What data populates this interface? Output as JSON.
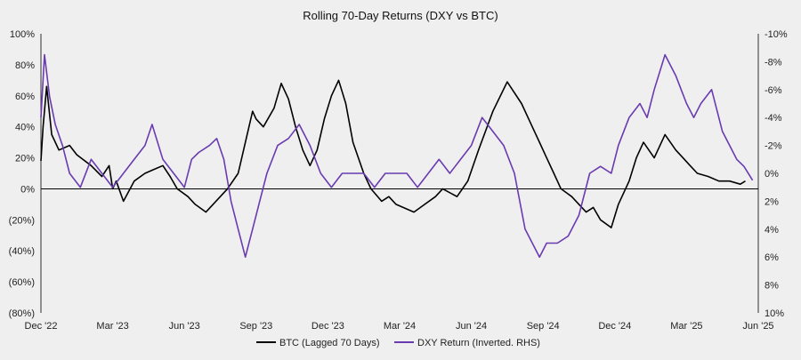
{
  "chart_data": {
    "type": "line",
    "title": "Rolling 70-Day Returns (DXY vs BTC)",
    "x_ticks": [
      "Dec '22",
      "Mar '23",
      "Jun '23",
      "Sep '23",
      "Dec '23",
      "Mar '24",
      "Jun '24",
      "Sep '24",
      "Dec '24",
      "Mar '25",
      "Jun '25"
    ],
    "y_left": {
      "range": [
        -80,
        100
      ],
      "ticks": [
        100,
        80,
        60,
        40,
        20,
        0,
        -20,
        -40,
        -60,
        -80
      ],
      "tick_labels": [
        "100%",
        "80%",
        "60%",
        "40%",
        "20%",
        "0%",
        "(20%)",
        "(40%)",
        "(60%)",
        "(80%)"
      ]
    },
    "y_right": {
      "range": [
        10,
        -10
      ],
      "inverted": true,
      "ticks": [
        -10,
        -8,
        -6,
        -4,
        -2,
        0,
        2,
        4,
        6,
        8,
        10
      ],
      "tick_labels": [
        "-10%",
        "-8%",
        "-6%",
        "-4%",
        "-2%",
        "0%",
        "2%",
        "4%",
        "6%",
        "8%",
        "10%"
      ]
    },
    "series": [
      {
        "name": "BTC (Lagged 70 Days)",
        "color": "#000000",
        "axis": "left",
        "unit": "percent",
        "x": [
          0.0,
          0.03,
          0.08,
          0.15,
          0.25,
          0.4,
          0.5,
          0.7,
          0.85,
          0.95,
          1.0,
          1.05,
          1.15,
          1.3,
          1.45,
          1.55,
          1.7,
          1.8,
          1.9,
          2.05,
          2.15,
          2.3,
          2.4,
          2.5,
          2.6,
          2.75,
          2.85,
          2.95,
          3.0,
          3.1,
          3.25,
          3.35,
          3.45,
          3.55,
          3.65,
          3.75,
          3.85,
          3.95,
          4.05,
          4.15,
          4.25,
          4.35,
          4.5,
          4.6,
          4.75,
          4.85,
          4.95,
          5.05,
          5.2,
          5.35,
          5.5,
          5.6,
          5.8,
          5.95,
          6.1,
          6.3,
          6.5,
          6.7,
          6.85,
          6.95,
          7.05,
          7.15,
          7.25,
          7.4,
          7.5,
          7.6,
          7.7,
          7.8,
          7.95,
          8.05,
          8.2,
          8.3,
          8.4,
          8.55,
          8.7,
          8.85,
          8.95,
          9.05,
          9.15,
          9.3,
          9.45,
          9.6,
          9.75,
          9.82
        ],
        "values": [
          18,
          40,
          66,
          35,
          25,
          28,
          22,
          15,
          8,
          15,
          0,
          5,
          -8,
          5,
          10,
          12,
          15,
          8,
          0,
          -5,
          -10,
          -15,
          -10,
          -5,
          0,
          10,
          30,
          50,
          45,
          40,
          52,
          68,
          58,
          40,
          25,
          15,
          25,
          45,
          60,
          70,
          55,
          30,
          10,
          0,
          -8,
          -5,
          -10,
          -12,
          -15,
          -10,
          -5,
          0,
          -5,
          5,
          25,
          50,
          69,
          55,
          40,
          30,
          20,
          10,
          0,
          -5,
          -10,
          -15,
          -12,
          -20,
          -25,
          -10,
          5,
          20,
          30,
          20,
          35,
          25,
          20,
          15,
          10,
          8,
          5,
          5,
          3,
          5
        ]
      },
      {
        "name": "DXY Return (Inverted. RHS)",
        "color": "#6a3bb0",
        "axis": "right",
        "unit": "percent",
        "x": [
          0.0,
          0.05,
          0.12,
          0.2,
          0.3,
          0.4,
          0.55,
          0.7,
          0.85,
          1.0,
          1.15,
          1.3,
          1.45,
          1.55,
          1.7,
          1.85,
          2.0,
          2.1,
          2.2,
          2.35,
          2.45,
          2.55,
          2.65,
          2.75,
          2.85,
          2.9,
          2.95,
          3.05,
          3.15,
          3.3,
          3.45,
          3.6,
          3.75,
          3.9,
          4.05,
          4.2,
          4.35,
          4.5,
          4.65,
          4.8,
          4.95,
          5.1,
          5.25,
          5.4,
          5.55,
          5.7,
          5.85,
          6.0,
          6.15,
          6.3,
          6.45,
          6.6,
          6.75,
          6.85,
          6.95,
          7.05,
          7.2,
          7.35,
          7.5,
          7.65,
          7.8,
          7.95,
          8.05,
          8.2,
          8.35,
          8.45,
          8.55,
          8.7,
          8.85,
          9.0,
          9.1,
          9.2,
          9.35,
          9.5,
          9.6,
          9.7,
          9.8,
          9.92
        ],
        "values": [
          -4,
          -8.5,
          -5.5,
          -3.5,
          -2,
          0,
          1,
          -1,
          0,
          1,
          0,
          -1,
          -2,
          -3.5,
          -1,
          0,
          1,
          -1,
          -1.5,
          -2,
          -2.5,
          -1,
          2,
          4,
          6,
          5,
          4,
          2,
          0,
          -2,
          -2.5,
          -3.5,
          -2,
          0,
          1,
          0,
          0,
          0,
          1,
          0,
          0,
          0,
          1,
          0,
          -1,
          0,
          -1,
          -2,
          -4,
          -3,
          -2,
          0,
          4,
          5,
          6,
          5,
          5,
          4.5,
          3,
          0,
          -0.5,
          0,
          -2,
          -4,
          -5,
          -4,
          -6,
          -8.5,
          -7,
          -5,
          -4,
          -5,
          -6,
          -3,
          -2,
          -1,
          -0.5,
          0.5
        ]
      }
    ],
    "legend_position": "bottom"
  }
}
